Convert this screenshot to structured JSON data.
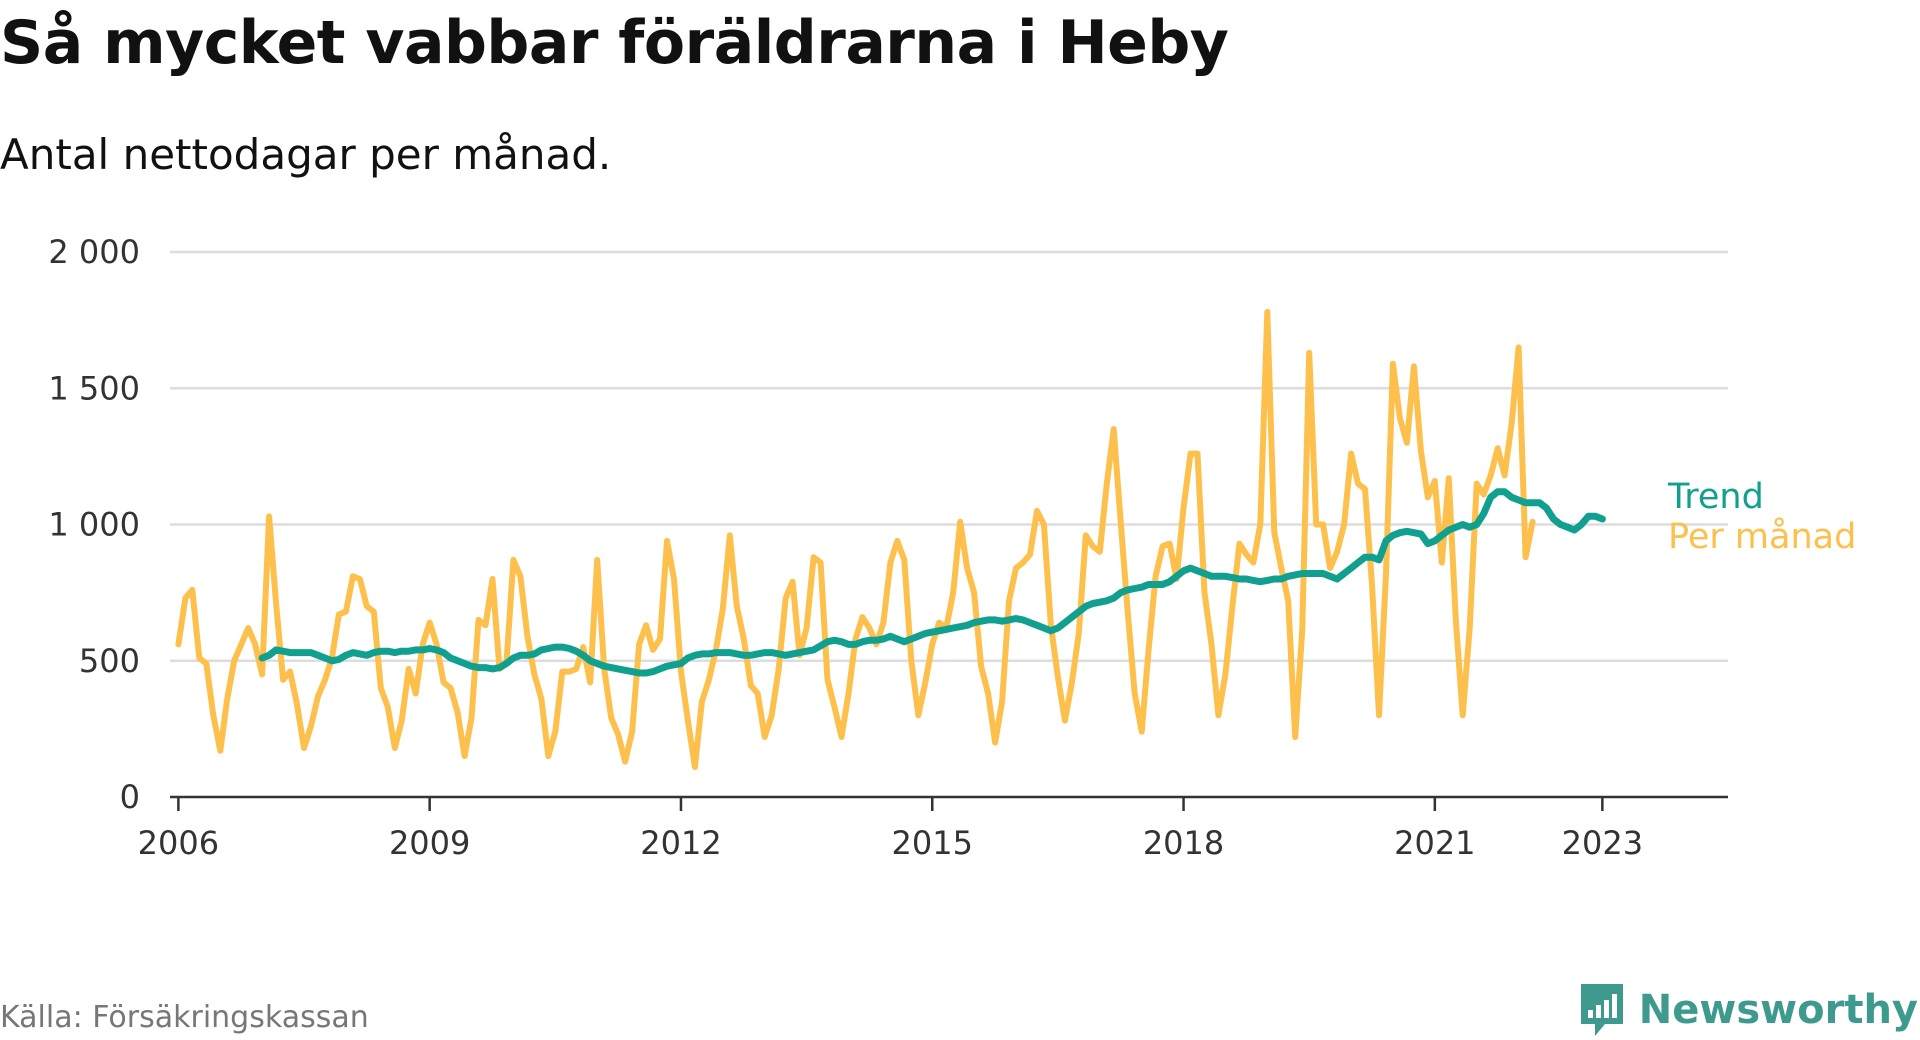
{
  "title": "Så mycket vabbar föräldrarna i Heby",
  "subtitle": "Antal nettodagar per månad.",
  "source": "Källa: Försäkringskassan",
  "brand": "Newsworthy",
  "brand_icon": "newsworthy-logo-icon",
  "colors": {
    "per_manad": "#fdc04c",
    "trend": "#11a090",
    "grid": "#dddddd",
    "axis": "#333333",
    "brand": "#3e9a8e"
  },
  "chart_data": {
    "type": "line",
    "x_start": "2006-01",
    "x_step": "month",
    "xlim": [
      2005.9,
      2024.5
    ],
    "ylim": [
      0,
      2000
    ],
    "x_ticks": [
      {
        "value": 2006,
        "label": "2006"
      },
      {
        "value": 2009,
        "label": "2009"
      },
      {
        "value": 2012,
        "label": "2012"
      },
      {
        "value": 2015,
        "label": "2015"
      },
      {
        "value": 2018,
        "label": "2018"
      },
      {
        "value": 2021,
        "label": "2021"
      },
      {
        "value": 2023,
        "label": "2023"
      }
    ],
    "y_ticks": [
      {
        "value": 0,
        "label": "0"
      },
      {
        "value": 500,
        "label": "500"
      },
      {
        "value": 1000,
        "label": "1 000"
      },
      {
        "value": 1500,
        "label": "1 500"
      },
      {
        "value": 2000,
        "label": "2 000"
      }
    ],
    "grid": true,
    "legend": "inline-right",
    "series": [
      {
        "name": "Per månad",
        "color": "#fdc04c",
        "start": "2006-01",
        "values": [
          560,
          730,
          760,
          510,
          490,
          300,
          170,
          360,
          500,
          560,
          620,
          560,
          450,
          1030,
          710,
          430,
          460,
          340,
          180,
          260,
          370,
          430,
          510,
          670,
          680,
          810,
          800,
          700,
          680,
          400,
          330,
          180,
          280,
          470,
          380,
          560,
          640,
          560,
          420,
          400,
          310,
          150,
          290,
          650,
          630,
          800,
          470,
          490,
          870,
          810,
          590,
          450,
          360,
          150,
          240,
          460,
          460,
          470,
          550,
          420,
          870,
          470,
          290,
          230,
          130,
          240,
          560,
          630,
          540,
          580,
          940,
          800,
          460,
          280,
          110,
          350,
          430,
          540,
          690,
          960,
          700,
          580,
          410,
          380,
          220,
          300,
          470,
          730,
          790,
          520,
          620,
          880,
          860,
          430,
          330,
          220,
          380,
          580,
          660,
          620,
          560,
          640,
          860,
          940,
          870,
          500,
          300,
          420,
          560,
          640,
          620,
          750,
          1010,
          840,
          750,
          480,
          380,
          200,
          350,
          720,
          840,
          860,
          890,
          1050,
          1000,
          630,
          440,
          280,
          420,
          600,
          960,
          920,
          900,
          1150,
          1350,
          1010,
          680,
          380,
          240,
          540,
          810,
          920,
          930,
          800,
          1060,
          1260,
          1260,
          750,
          560,
          300,
          450,
          700,
          930,
          890,
          860,
          1000,
          1780,
          970,
          840,
          720,
          220,
          610,
          1630,
          1000,
          1000,
          840,
          900,
          1000,
          1260,
          1150,
          1130,
          780,
          300,
          820,
          1590,
          1390,
          1300,
          1580,
          1270,
          1100,
          1160,
          860,
          1170,
          650,
          300,
          620,
          1150,
          1110,
          1180,
          1280,
          1180,
          1370,
          1650,
          880,
          1010
        ]
      },
      {
        "name": "Trend",
        "color": "#11a090",
        "start": "2007-01",
        "values": [
          510,
          520,
          540,
          535,
          530,
          530,
          530,
          530,
          520,
          510,
          500,
          505,
          520,
          530,
          525,
          520,
          530,
          535,
          535,
          530,
          535,
          535,
          540,
          540,
          545,
          540,
          530,
          510,
          500,
          490,
          480,
          475,
          475,
          470,
          475,
          490,
          510,
          520,
          520,
          525,
          540,
          545,
          550,
          550,
          545,
          535,
          520,
          500,
          490,
          480,
          475,
          470,
          465,
          460,
          455,
          455,
          460,
          470,
          480,
          485,
          490,
          510,
          520,
          525,
          525,
          530,
          530,
          530,
          525,
          520,
          520,
          525,
          530,
          530,
          525,
          520,
          525,
          530,
          535,
          540,
          555,
          570,
          575,
          570,
          560,
          560,
          570,
          575,
          575,
          580,
          590,
          580,
          570,
          580,
          590,
          600,
          605,
          610,
          615,
          620,
          625,
          630,
          640,
          645,
          650,
          650,
          645,
          650,
          655,
          650,
          640,
          630,
          620,
          610,
          620,
          640,
          660,
          680,
          700,
          710,
          715,
          720,
          730,
          750,
          760,
          765,
          770,
          780,
          780,
          780,
          790,
          810,
          830,
          840,
          830,
          820,
          810,
          810,
          810,
          805,
          800,
          800,
          795,
          790,
          795,
          800,
          800,
          810,
          815,
          820,
          820,
          820,
          820,
          810,
          800,
          820,
          840,
          860,
          880,
          880,
          870,
          940,
          960,
          970,
          975,
          970,
          965,
          930,
          940,
          960,
          980,
          990,
          1000,
          990,
          1000,
          1040,
          1100,
          1120,
          1120,
          1100,
          1090,
          1080,
          1080,
          1080,
          1060,
          1020,
          1000,
          990,
          980,
          1000,
          1030,
          1030,
          1020
        ]
      }
    ]
  }
}
